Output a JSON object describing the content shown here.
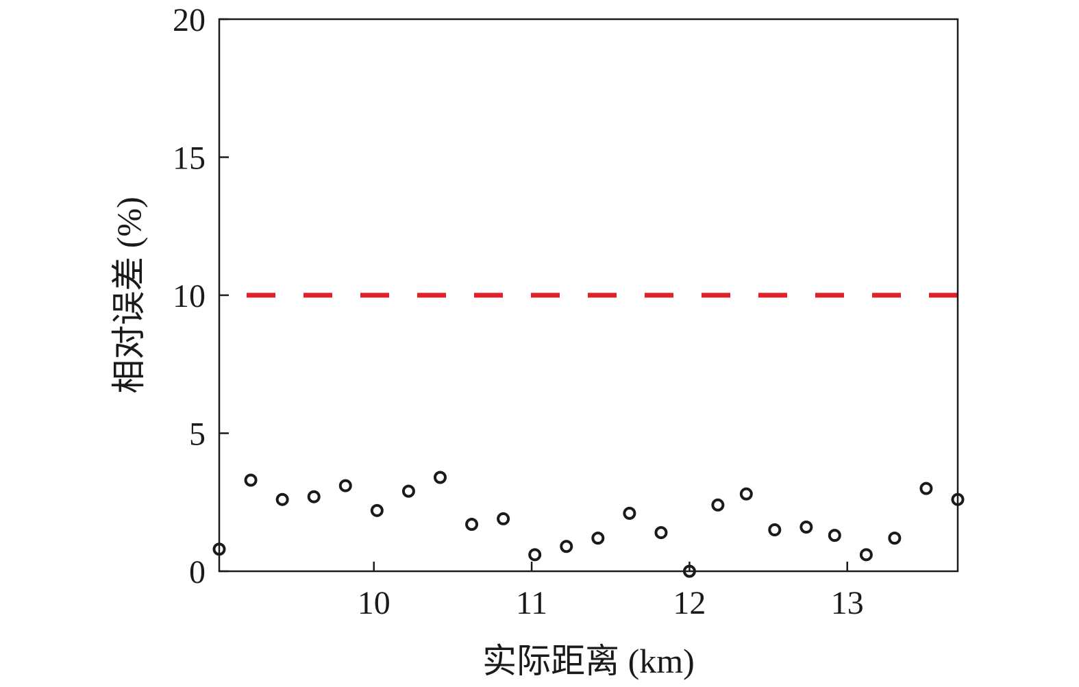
{
  "chart_data": {
    "type": "scatter",
    "title": "",
    "xlabel": "实际距离 (km)",
    "ylabel": "相对误差 (%)",
    "xlim": [
      9.02,
      13.7
    ],
    "ylim": [
      0,
      20
    ],
    "xticks": [
      10,
      11,
      12,
      13
    ],
    "yticks": [
      0,
      5,
      10,
      15,
      20
    ],
    "grid": false,
    "legend": "none",
    "series": [
      {
        "marker": "open-circle",
        "color": "#1a1a1a",
        "x": [
          9.02,
          9.22,
          9.42,
          9.62,
          9.82,
          10.02,
          10.22,
          10.42,
          10.62,
          10.82,
          11.02,
          11.22,
          11.42,
          11.62,
          11.82,
          12.0,
          12.18,
          12.36,
          12.54,
          12.74,
          12.92,
          13.12,
          13.3,
          13.5,
          13.7
        ],
        "y": [
          0.8,
          3.3,
          2.6,
          2.7,
          3.1,
          2.2,
          2.9,
          3.4,
          1.7,
          1.9,
          0.6,
          0.9,
          1.2,
          2.1,
          1.4,
          0.0,
          2.4,
          2.8,
          1.5,
          1.6,
          1.3,
          0.6,
          1.2,
          3.0,
          2.6
        ]
      }
    ],
    "reference_line": {
      "y": 10,
      "style": "dashed",
      "color": "#e0202a"
    }
  }
}
